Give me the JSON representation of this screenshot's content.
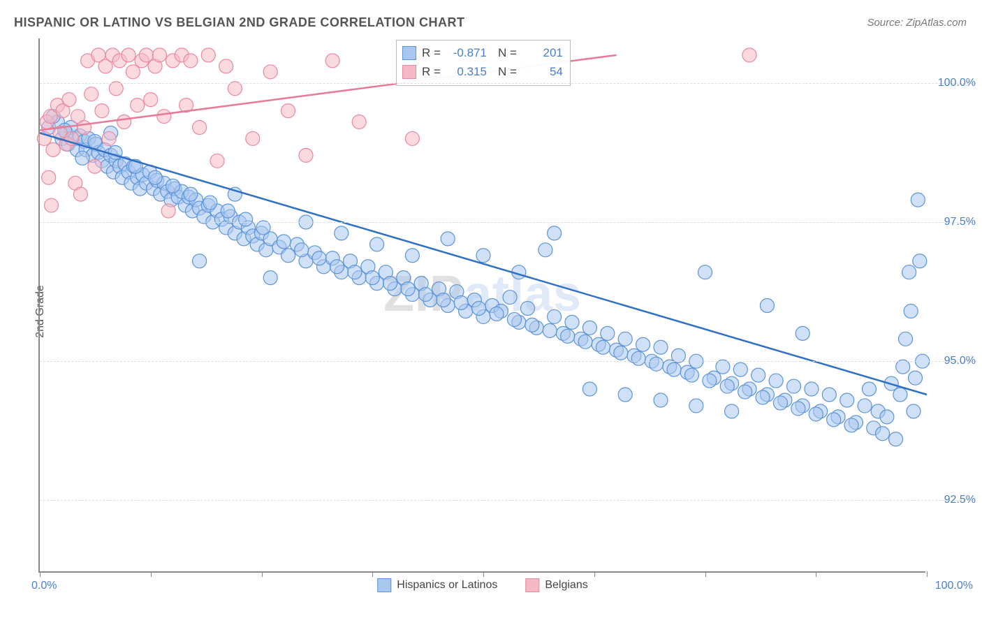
{
  "title": "HISPANIC OR LATINO VS BELGIAN 2ND GRADE CORRELATION CHART",
  "source_label": "Source: ZipAtlas.com",
  "y_axis_title": "2nd Grade",
  "watermark": {
    "part1": "ZIP",
    "part2": "atlas"
  },
  "chart": {
    "type": "scatter",
    "background_color": "#ffffff",
    "grid_color": "#dddddd",
    "axis_color": "#888888",
    "xlim": [
      0,
      100
    ],
    "ylim": [
      91.2,
      100.8
    ],
    "xlabel_min": "0.0%",
    "xlabel_max": "100.0%",
    "xtick_positions": [
      0,
      12.5,
      25,
      37.5,
      50,
      62.5,
      75,
      87.5,
      100
    ],
    "ytick_positions": [
      92.5,
      95.0,
      97.5,
      100.0
    ],
    "ytick_labels": [
      "92.5%",
      "95.0%",
      "97.5%",
      "100.0%"
    ],
    "marker_radius": 10,
    "marker_opacity": 0.55,
    "line_width": 2.5,
    "series": [
      {
        "name": "Hispanics or Latinos",
        "color_fill": "#a9c7ef",
        "color_stroke": "#5a94db",
        "line_color": "#2f6fc4",
        "R": "-0.871",
        "N": "201",
        "regression": {
          "x1": 0,
          "y1": 99.1,
          "x2": 100,
          "y2": 94.4
        },
        "points": [
          [
            1,
            99.2
          ],
          [
            2,
            99.3
          ],
          [
            2.5,
            99.0
          ],
          [
            3,
            99.1
          ],
          [
            3.2,
            98.9
          ],
          [
            3.5,
            99.2
          ],
          [
            4,
            99.0
          ],
          [
            4.2,
            98.8
          ],
          [
            4.5,
            99.05
          ],
          [
            5,
            98.95
          ],
          [
            5.2,
            98.8
          ],
          [
            5.5,
            99.0
          ],
          [
            6,
            98.7
          ],
          [
            6.3,
            98.9
          ],
          [
            6.6,
            98.75
          ],
          [
            7,
            98.6
          ],
          [
            7.3,
            98.8
          ],
          [
            7.6,
            98.5
          ],
          [
            8,
            98.7
          ],
          [
            8.3,
            98.4
          ],
          [
            8.6,
            98.6
          ],
          [
            9,
            98.5
          ],
          [
            9.3,
            98.3
          ],
          [
            9.6,
            98.55
          ],
          [
            10,
            98.4
          ],
          [
            10.3,
            98.2
          ],
          [
            10.6,
            98.5
          ],
          [
            11,
            98.3
          ],
          [
            11.3,
            98.1
          ],
          [
            11.6,
            98.35
          ],
          [
            12,
            98.2
          ],
          [
            12.4,
            98.4
          ],
          [
            12.8,
            98.1
          ],
          [
            13.2,
            98.25
          ],
          [
            13.6,
            98.0
          ],
          [
            14,
            98.2
          ],
          [
            14.4,
            98.05
          ],
          [
            14.8,
            97.9
          ],
          [
            15.2,
            98.1
          ],
          [
            15.6,
            97.95
          ],
          [
            16,
            98.05
          ],
          [
            16.4,
            97.8
          ],
          [
            16.8,
            97.95
          ],
          [
            17.2,
            97.7
          ],
          [
            17.6,
            97.9
          ],
          [
            18,
            97.75
          ],
          [
            18.5,
            97.6
          ],
          [
            19,
            97.8
          ],
          [
            19.5,
            97.5
          ],
          [
            20,
            97.7
          ],
          [
            20.5,
            97.55
          ],
          [
            21,
            97.4
          ],
          [
            21.5,
            97.6
          ],
          [
            22,
            97.3
          ],
          [
            22.5,
            97.5
          ],
          [
            23,
            97.2
          ],
          [
            23.5,
            97.4
          ],
          [
            24,
            97.25
          ],
          [
            24.5,
            97.1
          ],
          [
            25,
            97.3
          ],
          [
            25.5,
            97.0
          ],
          [
            26,
            97.2
          ],
          [
            27,
            97.05
          ],
          [
            28,
            96.9
          ],
          [
            29,
            97.1
          ],
          [
            30,
            96.8
          ],
          [
            31,
            96.95
          ],
          [
            32,
            96.7
          ],
          [
            33,
            96.85
          ],
          [
            34,
            96.6
          ],
          [
            35,
            96.8
          ],
          [
            36,
            96.5
          ],
          [
            37,
            96.7
          ],
          [
            38,
            96.4
          ],
          [
            39,
            96.6
          ],
          [
            40,
            96.3
          ],
          [
            41,
            96.5
          ],
          [
            42,
            96.2
          ],
          [
            43,
            96.4
          ],
          [
            44,
            96.1
          ],
          [
            45,
            96.3
          ],
          [
            46,
            96.0
          ],
          [
            47,
            96.25
          ],
          [
            48,
            95.9
          ],
          [
            49,
            96.1
          ],
          [
            50,
            95.8
          ],
          [
            51,
            96.0
          ],
          [
            52,
            95.9
          ],
          [
            53,
            96.15
          ],
          [
            54,
            95.7
          ],
          [
            55,
            95.95
          ],
          [
            56,
            95.6
          ],
          [
            57,
            97.0
          ],
          [
            58,
            95.8
          ],
          [
            59,
            95.5
          ],
          [
            60,
            95.7
          ],
          [
            61,
            95.4
          ],
          [
            62,
            95.6
          ],
          [
            63,
            95.3
          ],
          [
            64,
            95.5
          ],
          [
            65,
            95.2
          ],
          [
            66,
            95.4
          ],
          [
            67,
            95.1
          ],
          [
            68,
            95.3
          ],
          [
            69,
            95.0
          ],
          [
            70,
            95.25
          ],
          [
            71,
            94.9
          ],
          [
            72,
            95.1
          ],
          [
            73,
            94.8
          ],
          [
            74,
            95.0
          ],
          [
            75,
            96.6
          ],
          [
            76,
            94.7
          ],
          [
            77,
            94.9
          ],
          [
            78,
            94.6
          ],
          [
            79,
            94.85
          ],
          [
            80,
            94.5
          ],
          [
            81,
            94.75
          ],
          [
            82,
            94.4
          ],
          [
            83,
            94.65
          ],
          [
            84,
            94.3
          ],
          [
            85,
            94.55
          ],
          [
            86,
            94.2
          ],
          [
            87,
            94.5
          ],
          [
            88,
            94.1
          ],
          [
            89,
            94.4
          ],
          [
            90,
            94.0
          ],
          [
            91,
            94.3
          ],
          [
            92,
            93.9
          ],
          [
            93,
            94.2
          ],
          [
            94,
            93.8
          ],
          [
            94.5,
            94.1
          ],
          [
            95,
            93.7
          ],
          [
            95.5,
            94.0
          ],
          [
            96,
            94.6
          ],
          [
            96.5,
            93.6
          ],
          [
            97,
            94.4
          ],
          [
            97.3,
            94.9
          ],
          [
            97.6,
            95.4
          ],
          [
            98,
            96.6
          ],
          [
            98.2,
            95.9
          ],
          [
            98.5,
            94.1
          ],
          [
            98.7,
            94.7
          ],
          [
            99,
            97.9
          ],
          [
            99.2,
            96.8
          ],
          [
            99.5,
            95.0
          ],
          [
            58,
            97.3
          ],
          [
            62,
            94.5
          ],
          [
            66,
            94.4
          ],
          [
            70,
            94.3
          ],
          [
            74,
            94.2
          ],
          [
            78,
            94.1
          ],
          [
            82,
            96.0
          ],
          [
            86,
            95.5
          ],
          [
            46,
            97.2
          ],
          [
            50,
            96.9
          ],
          [
            54,
            96.6
          ],
          [
            18,
            96.8
          ],
          [
            22,
            98.0
          ],
          [
            26,
            96.5
          ],
          [
            30,
            97.5
          ],
          [
            34,
            97.3
          ],
          [
            38,
            97.1
          ],
          [
            42,
            96.9
          ],
          [
            1.5,
            99.4
          ],
          [
            2.8,
            99.15
          ],
          [
            4.8,
            98.65
          ],
          [
            6.2,
            98.95
          ],
          [
            8.5,
            98.75
          ],
          [
            10.8,
            98.5
          ],
          [
            13,
            98.3
          ],
          [
            15,
            98.15
          ],
          [
            17,
            98.0
          ],
          [
            19.2,
            97.85
          ],
          [
            21.2,
            97.7
          ],
          [
            23.2,
            97.55
          ],
          [
            25.2,
            97.4
          ],
          [
            27.5,
            97.15
          ],
          [
            29.5,
            97.0
          ],
          [
            31.5,
            96.85
          ],
          [
            33.5,
            96.7
          ],
          [
            35.5,
            96.6
          ],
          [
            37.5,
            96.5
          ],
          [
            39.5,
            96.4
          ],
          [
            41.5,
            96.3
          ],
          [
            43.5,
            96.2
          ],
          [
            45.5,
            96.1
          ],
          [
            47.5,
            96.05
          ],
          [
            49.5,
            95.95
          ],
          [
            51.5,
            95.85
          ],
          [
            53.5,
            95.75
          ],
          [
            55.5,
            95.65
          ],
          [
            57.5,
            95.55
          ],
          [
            59.5,
            95.45
          ],
          [
            61.5,
            95.35
          ],
          [
            63.5,
            95.25
          ],
          [
            65.5,
            95.15
          ],
          [
            67.5,
            95.05
          ],
          [
            69.5,
            94.95
          ],
          [
            71.5,
            94.85
          ],
          [
            73.5,
            94.75
          ],
          [
            75.5,
            94.65
          ],
          [
            77.5,
            94.55
          ],
          [
            79.5,
            94.45
          ],
          [
            81.5,
            94.35
          ],
          [
            83.5,
            94.25
          ],
          [
            85.5,
            94.15
          ],
          [
            87.5,
            94.05
          ],
          [
            89.5,
            93.95
          ],
          [
            91.5,
            93.85
          ],
          [
            93.5,
            94.5
          ],
          [
            8,
            99.1
          ]
        ]
      },
      {
        "name": "Belgians",
        "color_fill": "#f5b9c5",
        "color_stroke": "#e988a0",
        "line_color": "#e67a97",
        "R": "0.315",
        "N": "54",
        "regression": {
          "x1": 0,
          "y1": 99.15,
          "x2": 65,
          "y2": 100.5
        },
        "points": [
          [
            0.5,
            99.0
          ],
          [
            0.8,
            99.3
          ],
          [
            1.2,
            99.4
          ],
          [
            1.5,
            98.8
          ],
          [
            2,
            99.6
          ],
          [
            2.3,
            99.1
          ],
          [
            2.6,
            99.5
          ],
          [
            3,
            98.9
          ],
          [
            3.3,
            99.7
          ],
          [
            3.6,
            99.0
          ],
          [
            4,
            98.2
          ],
          [
            4.3,
            99.4
          ],
          [
            4.6,
            98.0
          ],
          [
            5,
            99.2
          ],
          [
            5.4,
            100.4
          ],
          [
            5.8,
            99.8
          ],
          [
            6.2,
            98.5
          ],
          [
            6.6,
            100.5
          ],
          [
            7,
            99.5
          ],
          [
            7.4,
            100.3
          ],
          [
            7.8,
            99.0
          ],
          [
            8.2,
            100.5
          ],
          [
            8.6,
            99.9
          ],
          [
            9,
            100.4
          ],
          [
            9.5,
            99.3
          ],
          [
            10,
            100.5
          ],
          [
            10.5,
            100.2
          ],
          [
            11,
            99.6
          ],
          [
            11.5,
            100.4
          ],
          [
            12,
            100.5
          ],
          [
            12.5,
            99.7
          ],
          [
            13,
            100.3
          ],
          [
            13.5,
            100.5
          ],
          [
            14,
            99.4
          ],
          [
            14.5,
            97.7
          ],
          [
            15,
            100.4
          ],
          [
            16,
            100.5
          ],
          [
            16.5,
            99.6
          ],
          [
            17,
            100.4
          ],
          [
            18,
            99.2
          ],
          [
            19,
            100.5
          ],
          [
            20,
            98.6
          ],
          [
            21,
            100.3
          ],
          [
            22,
            99.9
          ],
          [
            24,
            99.0
          ],
          [
            26,
            100.2
          ],
          [
            28,
            99.5
          ],
          [
            30,
            98.7
          ],
          [
            33,
            100.4
          ],
          [
            36,
            99.3
          ],
          [
            42,
            99.0
          ],
          [
            80,
            100.5
          ],
          [
            1,
            98.3
          ],
          [
            1.3,
            97.8
          ]
        ]
      }
    ]
  },
  "stat_labels": {
    "R": "R =",
    "N": "N ="
  },
  "legend_bottom": [
    {
      "label": "Hispanics or Latinos",
      "fill": "#a9c7ef",
      "stroke": "#5a94db"
    },
    {
      "label": "Belgians",
      "fill": "#f5b9c5",
      "stroke": "#e988a0"
    }
  ]
}
